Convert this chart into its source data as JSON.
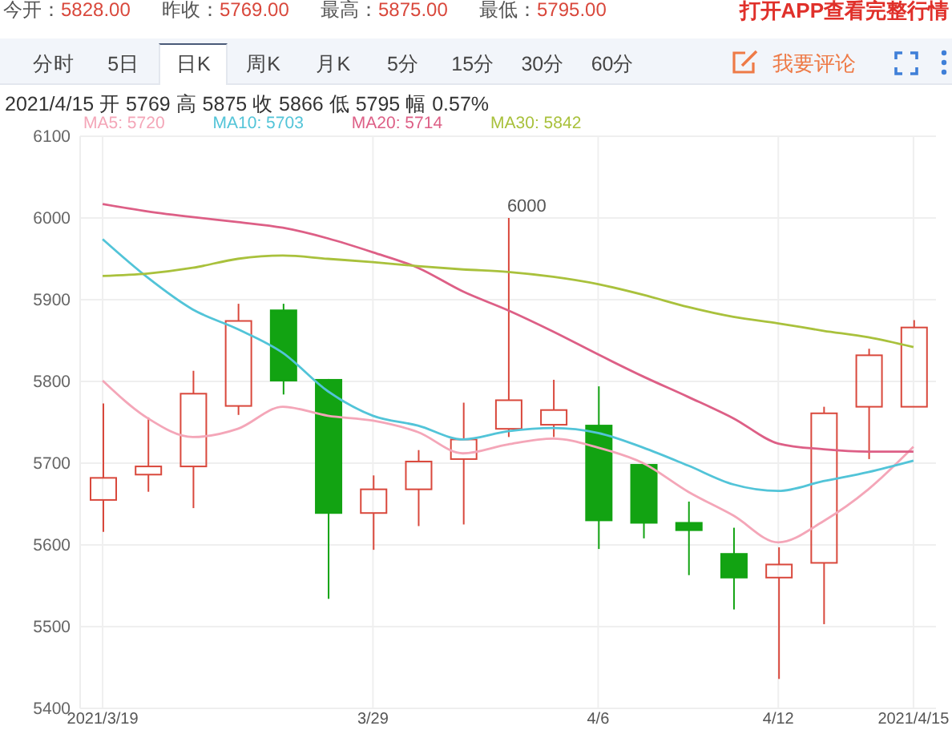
{
  "chart_data": {
    "type": "candlestick",
    "categories": [
      "2021/3/19",
      null,
      null,
      null,
      null,
      null,
      "3/29",
      null,
      null,
      null,
      null,
      "4/6",
      null,
      null,
      null,
      "4/12",
      null,
      null,
      "2021/4/15"
    ],
    "ohlc": [
      [
        5655,
        5773,
        5616,
        5682
      ],
      [
        5686,
        5756,
        5665,
        5696
      ],
      [
        5696,
        5813,
        5645,
        5785
      ],
      [
        5770,
        5895,
        5759,
        5874
      ],
      [
        5887,
        5895,
        5784,
        5801
      ],
      [
        5802,
        5803,
        5534,
        5639
      ],
      [
        5639,
        5685,
        5594,
        5668
      ],
      [
        5668,
        5716,
        5623,
        5702
      ],
      [
        5705,
        5774,
        5625,
        5729
      ],
      [
        5742,
        6000,
        5732,
        5777
      ],
      [
        5747,
        5802,
        5732,
        5765
      ],
      [
        5746,
        5794,
        5595,
        5630
      ],
      [
        5698,
        5698,
        5608,
        5627
      ],
      [
        5627,
        5653,
        5563,
        5618
      ],
      [
        5589,
        5621,
        5521,
        5560
      ],
      [
        5560,
        5597,
        5436,
        5576
      ],
      [
        5578,
        5769,
        5503,
        5761
      ],
      [
        5769,
        5840,
        5705,
        5832
      ],
      [
        5769,
        5875,
        5769,
        5866
      ]
    ],
    "value_labels": [
      null,
      null,
      null,
      null,
      null,
      null,
      null,
      null,
      null,
      "6000",
      null,
      null,
      null,
      null,
      null,
      null,
      null,
      null,
      null
    ],
    "colors": [
      "#d9483c",
      "#d9483c",
      "#d9483c",
      "#d9483c",
      "#12a312",
      "#12a312",
      "#d9483c",
      "#d9483c",
      "#d9483c",
      "#d9483c",
      "#d9483c",
      "#12a312",
      "#12a312",
      "#12a312",
      "#12a312",
      "#d9483c",
      "#d9483c",
      "#d9483c",
      "#d9483c"
    ],
    "series": [
      {
        "name": "MA5: 5720",
        "type": "line",
        "color": "#f4a6b8",
        "values": [
          5801,
          5755,
          5732,
          5742,
          5769,
          5758,
          5752,
          5738,
          5712,
          5723,
          5730,
          5719,
          5700,
          5665,
          5636,
          5603,
          5629,
          5668,
          5720
        ]
      },
      {
        "name": "MA10: 5703",
        "type": "line",
        "color": "#52c4d8",
        "values": [
          5974,
          5927,
          5888,
          5864,
          5835,
          5788,
          5758,
          5746,
          5729,
          5739,
          5743,
          5737,
          5719,
          5697,
          5674,
          5666,
          5678,
          5689,
          5703
        ]
      },
      {
        "name": "MA20: 5714",
        "type": "line",
        "color": "#dd5f86",
        "values": [
          6017,
          6008,
          6001,
          5995,
          5988,
          5975,
          5958,
          5939,
          5910,
          5887,
          5861,
          5833,
          5806,
          5781,
          5755,
          5724,
          5717,
          5714,
          5714
        ]
      },
      {
        "name": "MA30: 5842",
        "type": "line",
        "color": "#a9c13c",
        "values": [
          5929,
          5932,
          5939,
          5950,
          5954,
          5950,
          5946,
          5941,
          5937,
          5934,
          5928,
          5919,
          5906,
          5891,
          5879,
          5871,
          5862,
          5854,
          5842
        ]
      }
    ],
    "ylim": [
      5400,
      6100
    ],
    "yticks": [
      5400,
      5500,
      5600,
      5700,
      5800,
      5900,
      6000,
      6100
    ],
    "grid": true,
    "legend": "top left",
    "marker": "none",
    "annotations": [
      "今开：5828.00",
      "昨收：5769.00",
      "最高：5875.00",
      "最低：5795.00",
      "打开APP查看完整行情",
      "分时",
      "5日",
      "日K",
      "周K",
      "月K",
      "5分",
      "15分",
      "30分",
      "60分",
      "我要评论",
      "2021/4/15 开 5769 高 5875 收 5866 低 5795 幅 0.57%"
    ]
  }
}
